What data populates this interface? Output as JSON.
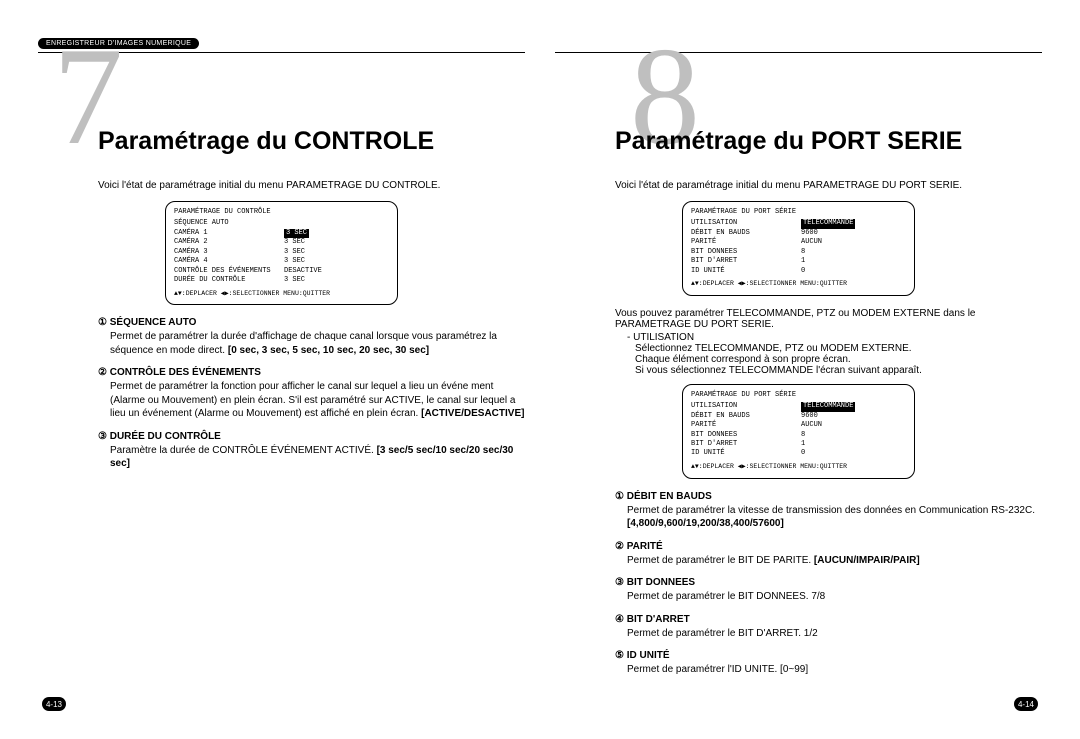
{
  "header_badge": "ENREGISTREUR D'IMAGES NUMERIQUE",
  "left": {
    "big_number": "7",
    "title": "Paramétrage du CONTROLE",
    "intro": "Voici l'état de paramétrage initial du menu PARAMETRAGE DU CONTROLE.",
    "monitor": {
      "title": "PARAMÉTRAGE DU CONTRÔLE",
      "rows": [
        {
          "k": "SÉQUENCE AUTO",
          "v": ""
        },
        {
          "k": "CAMÉRA 1",
          "v": "3 SEC",
          "inv": true
        },
        {
          "k": "CAMÉRA 2",
          "v": "3 SEC"
        },
        {
          "k": "CAMÉRA 3",
          "v": "3 SEC"
        },
        {
          "k": "CAMÉRA 4",
          "v": "3 SEC"
        },
        {
          "k": "CONTRÔLE DES ÉVÉNEMENTS",
          "v": "DESACTIVE"
        },
        {
          "k": "DURÉE DU CONTRÔLE",
          "v": "3 SEC"
        }
      ],
      "footer": "▲▼:DEPLACER ◀▶:SELECTIONNER MENU:QUITTER"
    },
    "items": [
      {
        "num": "①",
        "head": "SÉQUENCE AUTO",
        "desc": "Permet de paramétrer la durée d'affichage de chaque canal lorsque vous paramétrez la séquence en mode direct.",
        "bold": "0 sec, 3 sec, 5 sec, 10 sec, 20 sec, 30 sec"
      },
      {
        "num": "②",
        "head": "CONTRÔLE DES ÉVÉNEMENTS",
        "desc": "Permet de paramétrer la fonction pour afficher le canal sur lequel a lieu un événe ment (Alarme ou Mouvement) en plein écran. S'il est paramétré sur ACTIVE, le canal sur lequel a lieu un événement (Alarme ou Mouvement) est affiché en plein écran.",
        "bold": "ACTIVE/DESACTIVE"
      },
      {
        "num": "③",
        "head": "DURÉE DU CONTRÔLE",
        "desc": "Paramètre la durée de CONTRÔLE ÉVÉNEMENT ACTIVÉ.",
        "bold": "3 sec/5 sec/10 sec/20 sec/30 sec"
      }
    ],
    "page": "4-13"
  },
  "right": {
    "big_number": "8",
    "title": "Paramétrage du PORT SERIE",
    "intro": "Voici l'état de paramétrage initial du menu PARAMETRAGE DU PORT SERIE.",
    "monitor1": {
      "title": "PARAMÉTRAGE DU PORT SÉRIE",
      "rows": [
        {
          "k": "UTILISATION",
          "v": "TÉLÉCOMMANDE",
          "inv": true
        },
        {
          "k": "DÉBIT EN BAUDS",
          "v": "9600"
        },
        {
          "k": "PARITÉ",
          "v": "AUCUN"
        },
        {
          "k": "BIT DONNEES",
          "v": "8"
        },
        {
          "k": "BIT D'ARRET",
          "v": "1"
        },
        {
          "k": "ID UNITÉ",
          "v": "0"
        }
      ],
      "footer": "▲▼:DEPLACER ◀▶:SELECTIONNER MENU:QUITTER"
    },
    "para1": "Vous pouvez paramétrer TELECOMMANDE, PTZ ou MODEM EXTERNE dans le PARAMETRAGE DU PORT SERIE.",
    "util_label": "- UTILISATION",
    "util_desc1": "Sélectionnez TELECOMMANDE, PTZ ou MODEM EXTERNE.",
    "util_desc2": "Chaque élément correspond à son propre écran.",
    "util_desc3": "Si vous sélectionnez TELECOMMANDE l'écran suivant apparaît.",
    "monitor2": {
      "title": "PARAMÉTRAGE DU PORT SÉRIE",
      "rows": [
        {
          "k": "UTILISATION",
          "v": "TÉLÉCOMMANDE",
          "inv": true
        },
        {
          "k": "DÉBIT EN BAUDS",
          "v": "9600"
        },
        {
          "k": "PARITÉ",
          "v": "AUCUN"
        },
        {
          "k": "BIT DONNEES",
          "v": "8"
        },
        {
          "k": "BIT D'ARRET",
          "v": "1"
        },
        {
          "k": "ID UNITÉ",
          "v": "0"
        }
      ],
      "footer": "▲▼:DEPLACER ◀▶:SELECTIONNER MENU:QUITTER"
    },
    "items": [
      {
        "num": "①",
        "head": "DÉBIT EN BAUDS",
        "desc": "Permet de paramétrer la vitesse de transmission des données en Communication RS-232C.",
        "bold": "4,800/9,600/19,200/38,400/57600"
      },
      {
        "num": "②",
        "head": "PARITÉ",
        "desc": "Permet de paramétrer le BIT DE PARITE.",
        "bold": "AUCUN/IMPAIR/PAIR"
      },
      {
        "num": "③",
        "head": "BIT DONNEES",
        "desc": "Permet de paramétrer le BIT DONNEES. 7/8",
        "bold": ""
      },
      {
        "num": "④",
        "head": "BIT D'ARRET",
        "desc": "Permet de paramétrer le BIT D'ARRET. 1/2",
        "bold": ""
      },
      {
        "num": "⑤",
        "head": "ID UNITÉ",
        "desc": "Permet de paramétrer l'ID UNITE. [0~99]",
        "bold": ""
      }
    ],
    "page": "4-14"
  }
}
